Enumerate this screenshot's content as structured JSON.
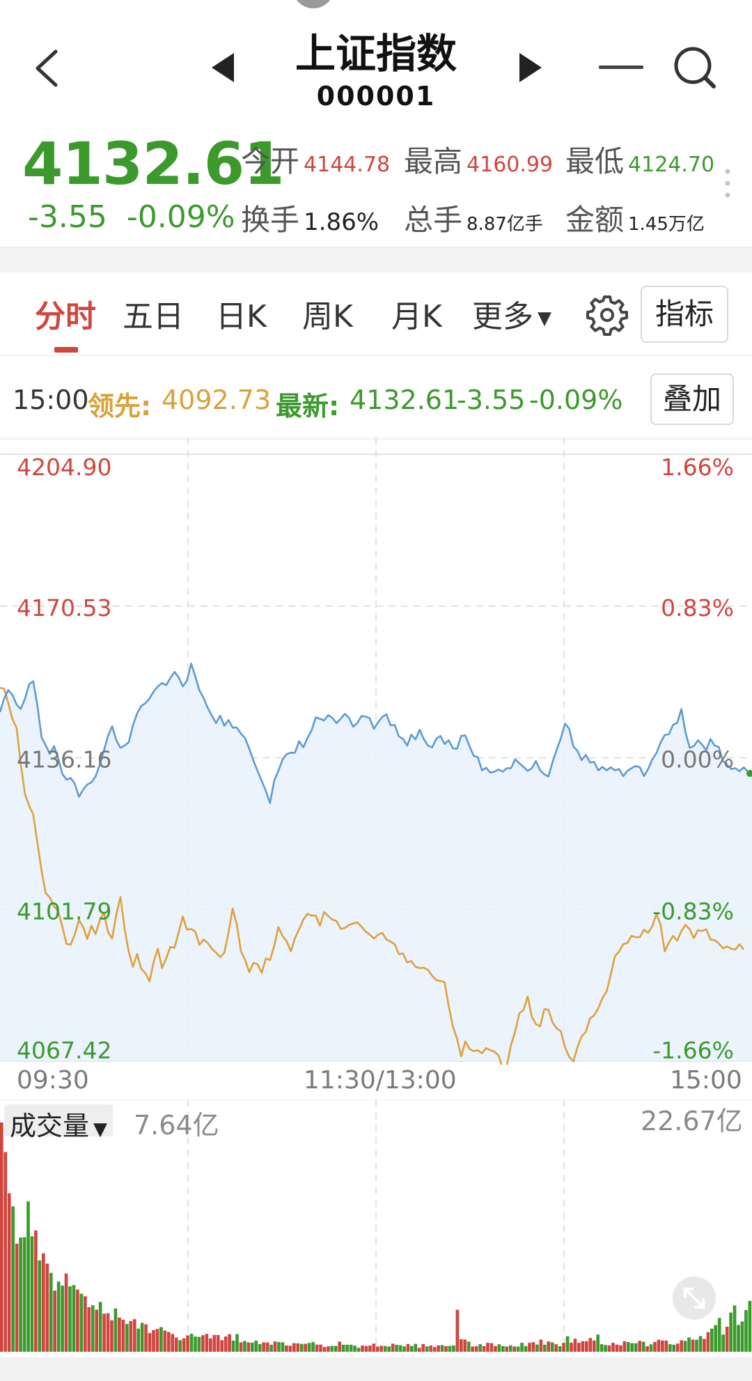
{
  "header": {
    "title": "上证指数",
    "code": "000001"
  },
  "quote": {
    "price": "4132.61",
    "change": "-3.55",
    "change_pct": "-0.09%",
    "stats": [
      {
        "label": "今开",
        "value": "4144.78",
        "color": "#d0453e"
      },
      {
        "label": "最高",
        "value": "4160.99",
        "color": "#d0453e"
      },
      {
        "label": "最低",
        "value": "4124.70",
        "color": "#3c9a2d"
      },
      {
        "label": "换手",
        "value": "1.86%",
        "color": "#222222"
      },
      {
        "label": "总手",
        "value": "8.87亿手",
        "color": "#222222"
      },
      {
        "label": "金额",
        "value": "1.45万亿",
        "color": "#222222"
      }
    ]
  },
  "tabs": {
    "items": [
      "分时",
      "五日",
      "日K",
      "周K",
      "月K",
      "更多"
    ],
    "active": "分时",
    "indicator_button": "指标"
  },
  "info": {
    "time": "15:00",
    "leader_label": "领先:",
    "leader_value": "4092.73",
    "latest_label": "最新:",
    "latest_value": "4132.61",
    "latest_change": "-3.55",
    "latest_pct": "-0.09%",
    "overlay_button": "叠加"
  },
  "chart_data": {
    "type": "line",
    "y_left_ticks": [
      "4204.90",
      "4170.53",
      "4136.16",
      "4101.79",
      "4067.42"
    ],
    "y_right_ticks": [
      "1.66%",
      "0.83%",
      "0.00%",
      "-0.83%",
      "-1.66%"
    ],
    "ylim": [
      4067.42,
      4204.9
    ],
    "x_ticks": [
      "09:30",
      "11:30/13:00",
      "15:00"
    ],
    "colors": {
      "price": "#5b9bd5",
      "leader": "#e0a03c",
      "up": "#d0453e",
      "down": "#3c9a2d",
      "grid": "#d8d8d8"
    },
    "series": [
      {
        "key": "price",
        "values": [
          4146.5,
          4149.6,
          4151.5,
          4150.4,
          4148.2,
          4147.2,
          4149.5,
          4152.8,
          4153.5,
          4148.0,
          4140.8,
          4139.0,
          4137.0,
          4138.8,
          4136.1,
          4132.5,
          4131.2,
          4131.6,
          4130.3,
          4127.3,
          4128.9,
          4130.1,
          4130.6,
          4131.9,
          4134.6,
          4137.8,
          4141.1,
          4143.3,
          4140.1,
          4138.4,
          4138.9,
          4139.7,
          4143.5,
          4146.2,
          4147.9,
          4148.5,
          4149.6,
          4151.2,
          4152.3,
          4153.1,
          4152.6,
          4154.2,
          4155.6,
          4154.4,
          4152.3,
          4153.6,
          4157.5,
          4154.6,
          4151.4,
          4149.7,
          4147.5,
          4145.7,
          4144.0,
          4145.7,
          4143.4,
          4144.7,
          4143.0,
          4143.0,
          4141.6,
          4140.6,
          4138.2,
          4135.5,
          4133.2,
          4130.9,
          4128.6,
          4125.9,
          4131.0,
          4133.2,
          4135.7,
          4137.0,
          4137.3,
          4137.3,
          4139.9,
          4138.5,
          4140.6,
          4142.4,
          4145.3,
          4145.0,
          4144.6,
          4145.8,
          4145.2,
          4144.0,
          4145.0,
          4146.1,
          4145.2,
          4143.2,
          4144.0,
          4145.6,
          4145.5,
          4145.1,
          4142.7,
          4144.2,
          4145.4,
          4146.0,
          4143.5,
          4143.6,
          4141.0,
          4140.4,
          4138.9,
          4141.4,
          4140.3,
          4142.5,
          4140.4,
          4138.9,
          4138.5,
          4140.4,
          4141.1,
          4139.3,
          4140.1,
          4138.3,
          4138.2,
          4141.1,
          4141.2,
          4138.8,
          4136.6,
          4136.3,
          4133.3,
          4133.9,
          4132.8,
          4133.0,
          4133.5,
          4133.0,
          4133.8,
          4133.8,
          4135.8,
          4134.9,
          4134.1,
          4133.2,
          4133.8,
          4135.4,
          4133.3,
          4132.4,
          4131.9,
          4135.2,
          4138.0,
          4140.6,
          4143.9,
          4142.7,
          4138.7,
          4137.7,
          4135.6,
          4136.8,
          4135.1,
          4135.2,
          4133.3,
          4134.1,
          4133.3,
          4134.0,
          4133.3,
          4133.6,
          4132.0,
          4133.2,
          4133.8,
          4134.3,
          4134.0,
          4132.0,
          4133.6,
          4135.8,
          4137.2,
          4139.6,
          4141.3,
          4141.5,
          4143.6,
          4144.1,
          4147.2,
          4141.9,
          4138.4,
          4138.8,
          4140.1,
          4139.1,
          4137.9,
          4140.4,
          4138.9,
          4138.6,
          4135.4,
          4134.6,
          4133.6,
          4133.8,
          4133.1,
          4134.0,
          4133.0,
          4132.6
        ]
      },
      {
        "key": "leader",
        "values": [
          4152.0,
          4151.8,
          4148.5,
          4144.9,
          4142.9,
          4134.7,
          4128.0,
          4125.3,
          4123.3,
          4116.9,
          4110.6,
          4105.5,
          4104.5,
          4102.5,
          4101.4,
          4097.9,
          4094.0,
          4093.8,
          4096.1,
          4099.4,
          4097.9,
          4095.1,
          4098.1,
          4096.2,
          4099.3,
          4101.1,
          4096.7,
          4095.2,
          4100.7,
          4104.6,
          4097.4,
          4092.1,
          4088.8,
          4091.7,
          4088.3,
          4087.4,
          4085.5,
          4090.0,
          4092.9,
          4088.5,
          4090.7,
          4093.3,
          4093.1,
          4096.6,
          4100.2,
          4097.2,
          4097.4,
          4096.8,
          4093.8,
          4095.0,
          4094.2,
          4092.9,
          4092.0,
          4091.0,
          4092.0,
          4096.6,
          4102.0,
          4098.4,
          4092.3,
          4090.4,
          4087.6,
          4089.7,
          4089.4,
          4087.4,
          4090.7,
          4090.3,
          4093.5,
          4097.8,
          4095.8,
          4094.6,
          4092.3,
          4095.3,
          4097.3,
          4099.5,
          4100.8,
          4100.4,
          4100.4,
          4098.1,
          4101.2,
          4100.3,
          4099.5,
          4099.2,
          4097.4,
          4097.6,
          4098.3,
          4098.6,
          4098.9,
          4097.9,
          4096.8,
          4096.1,
          4095.2,
          4096.1,
          4096.5,
          4095.0,
          4094.5,
          4093.9,
          4091.7,
          4091.8,
          4089.8,
          4090.1,
          4088.8,
          4088.5,
          4088.6,
          4088.1,
          4086.8,
          4085.8,
          4085.6,
          4085.3,
          4079.9,
          4075.3,
          4072.5,
          4068.5,
          4071.9,
          4070.2,
          4069.7,
          4069.9,
          4069.2,
          4070.4,
          4069.9,
          4069.6,
          4068.7,
          4065.9,
          4066.5,
          4071.1,
          4074.1,
          4078.3,
          4079.0,
          4082.1,
          4077.5,
          4075.8,
          4075.3,
          4079.2,
          4079.1,
          4076.2,
          4074.8,
          4074.2,
          4070.5,
          4068.4,
          4067.4,
          4070.6,
          4073.1,
          4074.0,
          4077.1,
          4077.8,
          4079.4,
          4081.7,
          4083.2,
          4087.0,
          4091.2,
          4092.3,
          4093.9,
          4094.2,
          4095.8,
          4095.5,
          4095.5,
          4097.2,
          4096.5,
          4098.0,
          4100.8,
          4098.3,
          4092.3,
          4094.3,
          4095.8,
          4094.7,
          4096.9,
          4098.3,
          4097.3,
          4095.3,
          4097.1,
          4096.9,
          4097.3,
          4095.0,
          4094.8,
          4094.1,
          4093.0,
          4093.4,
          4092.9,
          4092.7,
          4093.9,
          4092.7
        ]
      }
    ],
    "volume": {
      "label": "成交量",
      "current": "7.64亿",
      "max_label": "22.67亿",
      "max_value": 22.67,
      "values": [
        22.47,
        19.57,
        15.53,
        14.25,
        10.59,
        11.19,
        11.23,
        14.73,
        11.31,
        11.89,
        8.95,
        9.65,
        8.64,
        7.73,
        5.99,
        6.87,
        6.48,
        7.67,
        6.41,
        6.53,
        6.09,
        5.68,
        5.44,
        4.37,
        4.56,
        4.12,
        4.88,
        3.73,
        3.78,
        3.08,
        4.24,
        3.35,
        3.14,
        2.72,
        3.01,
        3.19,
        2.27,
        2.83,
        2.68,
        1.83,
        2.13,
        2.24,
        2.41,
        2.07,
        1.93,
        1.73,
        1.39,
        1.13,
        1.32,
        1.6,
        1.76,
        1.49,
        1.46,
        1.62,
        1.75,
        1.31,
        1.64,
        1.64,
        1.13,
        1.49,
        1.72,
        1.09,
        1.73,
        0.92,
        1.05,
        0.91,
        0.9,
        1.09,
        0.75,
        0.92,
        0.91,
        0.69,
        1.01,
        0.95,
        0.92,
        0.61,
        0.59,
        0.84,
        0.82,
        0.77,
        0.78,
        0.86,
        0.95,
        0.7,
        0.7,
        0.46,
        0.53,
        0.57,
        0.58,
        0.99,
        0.69,
        0.69,
        0.69,
        0.6,
        0.39,
        0.61,
        0.57,
        0.61,
        0.79,
        0.51,
        0.58,
        0.56,
        0.51,
        0.79,
        0.68,
        0.64,
        0.53,
        0.76,
        0.56,
        0.77,
        0.38,
        0.75,
        0.53,
        0.61,
        0.46,
        0.62,
        0.66,
        0.55,
        0.57,
        0.62,
        4.11,
        1.23,
        1.19,
        0.99,
        0.51,
        0.54,
        0.74,
        0.55,
        0.88,
        0.84,
        0.56,
        0.73,
        0.56,
        0.51,
        0.63,
        0.52,
        0.51,
        0.88,
        0.56,
        0.87,
        0.94,
        0.71,
        1.19,
        0.69,
        1.01,
        0.92,
        0.74,
        0.54,
        0.87,
        1.52,
        0.88,
        1.28,
        0.88,
        1.04,
        1.03,
        1.35,
        1.1,
        1.68,
        0.74,
        0.66,
        0.62,
        0.88,
        0.7,
        0.63,
        1.03,
        0.95,
        0.84,
        0.83,
        1.07,
        0.98,
        0.54,
        0.73,
        0.96,
        1.18,
        1.1,
        1.1,
        0.74,
        0.69,
        0.8,
        1.12,
        1.06,
        1.4,
        1.19,
        1.17,
        1.53,
        1.26,
        1.92,
        2.27,
        2.61,
        3.31,
        1.68,
        2.46,
        3.84,
        4.54,
        2.63,
        2.97,
        4.08,
        4.98
      ],
      "up": [
        1,
        1,
        1,
        0,
        1,
        0,
        0,
        0,
        0,
        1,
        0,
        1,
        1,
        0,
        1,
        0,
        0,
        1,
        0,
        0,
        1,
        0,
        1,
        1,
        0,
        1,
        0,
        1,
        1,
        1,
        0,
        1,
        1,
        0,
        1,
        1,
        0,
        0,
        1,
        1,
        1,
        1,
        0,
        1,
        1,
        1,
        1,
        0,
        1,
        1,
        0,
        0,
        0,
        1,
        1,
        1,
        1,
        1,
        1,
        1,
        1,
        0,
        0,
        1,
        0,
        1,
        0,
        0,
        0,
        1,
        1,
        0,
        1,
        0,
        0,
        1,
        1,
        1,
        1,
        0,
        1,
        0,
        0,
        1,
        1,
        1,
        1,
        0,
        0,
        1,
        0,
        0,
        0,
        0,
        0,
        1,
        1,
        1,
        1,
        1,
        1,
        0,
        0,
        1,
        0,
        0,
        0,
        1,
        0,
        0,
        1,
        1,
        0,
        1,
        1,
        1,
        0,
        1,
        0,
        0,
        1,
        1,
        1,
        0,
        1,
        1,
        0,
        1,
        1,
        1,
        1,
        0,
        0,
        1,
        0,
        1,
        0,
        0,
        0,
        1,
        1,
        0,
        1,
        0,
        1,
        0,
        1,
        0,
        1,
        0,
        1,
        1,
        1,
        1,
        1,
        1,
        1,
        0,
        0,
        0,
        1,
        1,
        1,
        1,
        1,
        0,
        0,
        0,
        1,
        0,
        1,
        0,
        1,
        1,
        1,
        1,
        0,
        0,
        1,
        1,
        0,
        0,
        1,
        0,
        0,
        1,
        1,
        0,
        0,
        0,
        0,
        1
      ]
    }
  }
}
